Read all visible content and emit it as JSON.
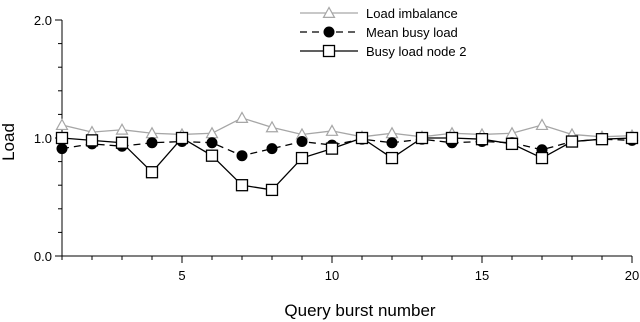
{
  "chart_data": {
    "type": "line",
    "title": "",
    "xlabel": "Query burst number",
    "ylabel": "Load",
    "xlim": [
      1,
      20
    ],
    "ylim": [
      0.0,
      2.0
    ],
    "x_ticks": [
      "5",
      "10",
      "15",
      "20"
    ],
    "y_ticks": [
      "0.0",
      "1.0",
      "2.0"
    ],
    "grid": false,
    "legend_position": "top-center",
    "x": [
      1,
      2,
      3,
      4,
      5,
      6,
      7,
      8,
      9,
      10,
      11,
      12,
      13,
      14,
      15,
      16,
      17,
      18,
      19,
      20
    ],
    "series": [
      {
        "name": "Load imbalance",
        "color": "#a6a6a6",
        "line": "solid",
        "marker": "open-triangle",
        "values": [
          1.11,
          1.05,
          1.07,
          1.04,
          1.03,
          1.04,
          1.17,
          1.09,
          1.03,
          1.06,
          1.01,
          1.04,
          1.01,
          1.04,
          1.03,
          1.04,
          1.11,
          1.03,
          1.01,
          1.02
        ]
      },
      {
        "name": "Mean busy load",
        "color": "#000000",
        "line": "dashed",
        "marker": "filled-circle",
        "values": [
          0.91,
          0.95,
          0.93,
          0.96,
          0.97,
          0.96,
          0.85,
          0.91,
          0.97,
          0.94,
          0.99,
          0.96,
          0.99,
          0.96,
          0.97,
          0.96,
          0.9,
          0.97,
          0.99,
          0.98
        ]
      },
      {
        "name": "Busy load node 2",
        "color": "#000000",
        "line": "solid",
        "marker": "open-square",
        "values": [
          1.0,
          0.98,
          0.96,
          0.71,
          1.0,
          0.85,
          0.6,
          0.56,
          0.83,
          0.91,
          1.0,
          0.83,
          1.0,
          1.0,
          0.99,
          0.95,
          0.83,
          0.97,
          0.99,
          1.0
        ]
      }
    ]
  }
}
